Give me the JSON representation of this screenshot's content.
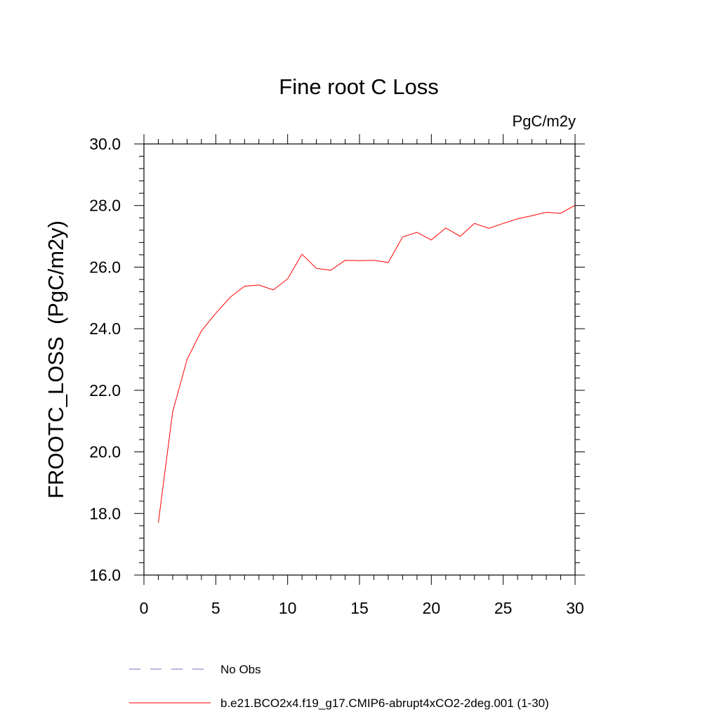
{
  "chart_data": {
    "type": "line",
    "title": "Fine root C Loss",
    "units_label": "PgC/m2y",
    "ylabel": "FROOTC_LOSS  (PgC/m2y)",
    "xlabel": "",
    "xlim": [
      0,
      30
    ],
    "ylim": [
      16.0,
      30.0
    ],
    "x_ticks": [
      0,
      5,
      10,
      15,
      20,
      25,
      30
    ],
    "x_tick_labels": [
      "0",
      "5",
      "10",
      "15",
      "20",
      "25",
      "30"
    ],
    "y_ticks": [
      16.0,
      18.0,
      20.0,
      22.0,
      24.0,
      26.0,
      28.0,
      30.0
    ],
    "y_tick_labels": [
      "16.0",
      "18.0",
      "20.0",
      "22.0",
      "24.0",
      "26.0",
      "28.0",
      "30.0"
    ],
    "grid": false,
    "legend_position": "bottom",
    "legend": [
      {
        "name": "No Obs",
        "color": "#7a6fc0",
        "style": "dashed"
      },
      {
        "name": "b.e21.BCO2x4.f19_g17.CMIP6-abrupt4xCO2-2deg.001 (1-30)",
        "color": "#ff0000",
        "style": "solid"
      }
    ],
    "series": [
      {
        "name": "b.e21.BCO2x4.f19_g17.CMIP6-abrupt4xCO2-2deg.001 (1-30)",
        "color": "#ff0000",
        "x": [
          1,
          2,
          3,
          4,
          5,
          6,
          7,
          8,
          9,
          10,
          11,
          12,
          13,
          14,
          15,
          16,
          17,
          18,
          19,
          20,
          21,
          22,
          23,
          24,
          25,
          26,
          27,
          28,
          29,
          30
        ],
        "values": [
          17.7,
          21.3,
          23.0,
          23.93,
          24.5,
          25.02,
          25.38,
          25.42,
          25.26,
          25.62,
          26.42,
          25.96,
          25.9,
          26.22,
          26.21,
          26.22,
          26.15,
          26.98,
          27.13,
          26.88,
          27.27,
          27.0,
          27.42,
          27.26,
          27.42,
          27.57,
          27.67,
          27.78,
          27.75,
          28.01
        ]
      }
    ]
  }
}
